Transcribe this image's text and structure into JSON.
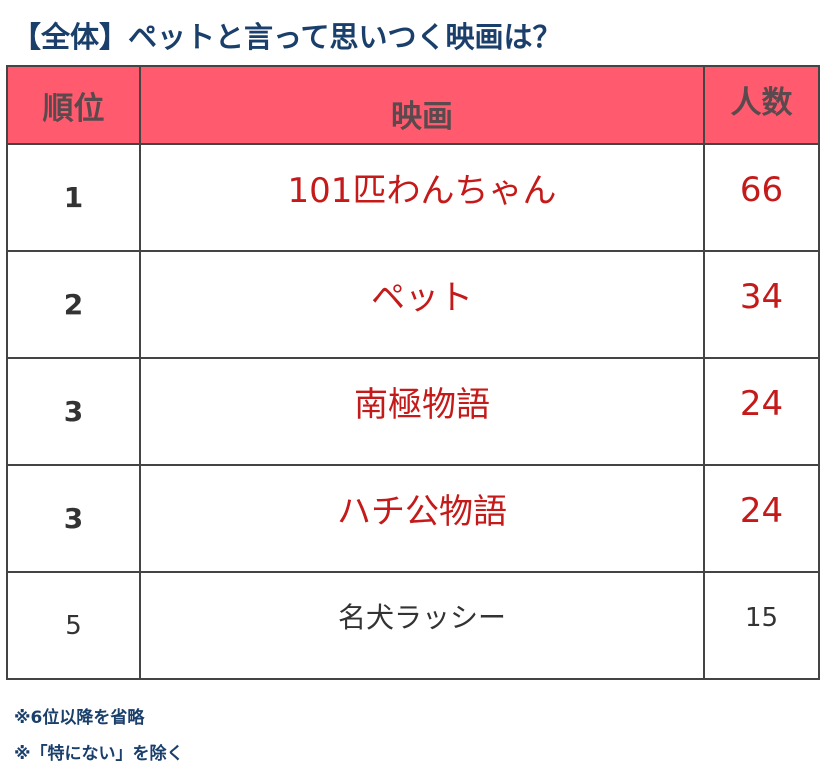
{
  "title": "【全体】ペットと言って思いつく映画は？",
  "table": {
    "headers": [
      "順位",
      "映画",
      "人数"
    ],
    "header_bg": "#ff5a6e",
    "rows": [
      {
        "rank": "1",
        "movie": "101匹わんちゃん",
        "count": "66",
        "highlight": true
      },
      {
        "rank": "2",
        "movie": "ペット",
        "count": "34",
        "highlight": true
      },
      {
        "rank": "3",
        "movie": "南極物語",
        "count": "24",
        "highlight": true
      },
      {
        "rank": "3",
        "movie": "ハチ公物語",
        "count": "24",
        "highlight": true
      },
      {
        "rank": "5",
        "movie": "名犬ラッシー",
        "count": "15",
        "highlight": false
      }
    ]
  },
  "notes": [
    "※6位以降を省略",
    "※「特にない」を除く"
  ],
  "colors": {
    "title": "#1a3f6b",
    "highlight_text": "#c41a1a",
    "header_bg": "#ff5a6e"
  }
}
